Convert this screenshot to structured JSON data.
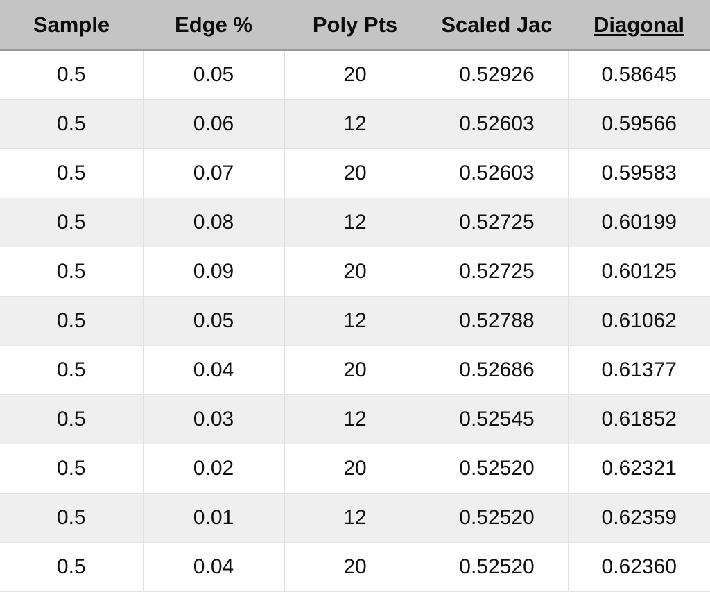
{
  "table": {
    "headers": [
      "Sample",
      "Edge %",
      "Poly Pts",
      "Scaled Jac",
      "Diagonal"
    ],
    "rows": [
      [
        "0.5",
        "0.05",
        "20",
        "0.52926",
        "0.58645"
      ],
      [
        "0.5",
        "0.06",
        "12",
        "0.52603",
        "0.59566"
      ],
      [
        "0.5",
        "0.07",
        "20",
        "0.52603",
        "0.59583"
      ],
      [
        "0.5",
        "0.08",
        "12",
        "0.52725",
        "0.60199"
      ],
      [
        "0.5",
        "0.09",
        "20",
        "0.52725",
        "0.60125"
      ],
      [
        "0.5",
        "0.05",
        "12",
        "0.52788",
        "0.61062"
      ],
      [
        "0.5",
        "0.04",
        "20",
        "0.52686",
        "0.61377"
      ],
      [
        "0.5",
        "0.03",
        "12",
        "0.52545",
        "0.61852"
      ],
      [
        "0.5",
        "0.02",
        "20",
        "0.52520",
        "0.62321"
      ],
      [
        "0.5",
        "0.01",
        "12",
        "0.52520",
        "0.62359"
      ],
      [
        "0.5",
        "0.04",
        "20",
        "0.52520",
        "0.62360"
      ]
    ]
  },
  "colors": {
    "header_background": "#c3c4c3",
    "row_alt_background": "#efefef",
    "row_background": "#ffffff"
  }
}
